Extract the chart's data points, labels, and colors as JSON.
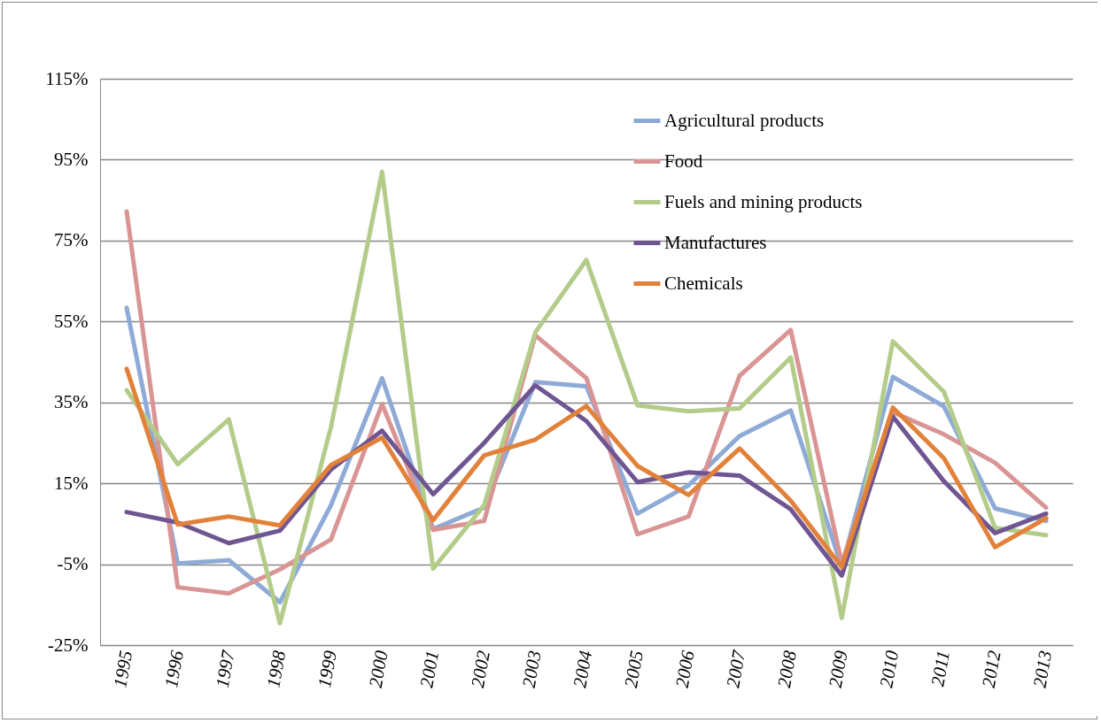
{
  "chart_data": {
    "type": "line",
    "categories": [
      "1995",
      "1996",
      "1997",
      "1998",
      "1999",
      "2000",
      "2001",
      "2002",
      "2003",
      "2004",
      "2005",
      "2006",
      "2007",
      "2008",
      "2009",
      "2010",
      "2011",
      "2012",
      "2013"
    ],
    "ylim": [
      -25,
      115
    ],
    "yticks": [
      {
        "value": -25,
        "label": "-25%"
      },
      {
        "value": -5,
        "label": "-5%"
      },
      {
        "value": 15,
        "label": "15%"
      },
      {
        "value": 35,
        "label": "35%"
      },
      {
        "value": 55,
        "label": "55%"
      },
      {
        "value": 75,
        "label": "75%"
      },
      {
        "value": 95,
        "label": "95%"
      },
      {
        "value": 115,
        "label": "115%"
      }
    ],
    "grid": "y",
    "legend": "top right",
    "line_style": "solid",
    "marker": "none",
    "series": [
      {
        "name": "Agricultural products",
        "color": "#8eaad6",
        "values": [
          58.4,
          -4.8,
          -4,
          -14.4,
          9.6,
          41,
          3.7,
          9,
          40,
          39,
          7.5,
          14.5,
          26.7,
          33,
          -5.7,
          41.3,
          34,
          8.8,
          5.7
        ]
      },
      {
        "name": "Food",
        "color": "#d99594",
        "values": [
          82.2,
          -10.7,
          -12.2,
          -6.3,
          1.1,
          34.6,
          3.5,
          5.7,
          51.6,
          41,
          2.4,
          6.8,
          41.6,
          52.9,
          -4.8,
          32.6,
          27.1,
          20.1,
          9
        ]
      },
      {
        "name": "Fuels and mining products",
        "color": "#b3cc8a",
        "values": [
          38,
          19.7,
          30.8,
          -19.6,
          28.9,
          92,
          -6.1,
          9.6,
          52.3,
          70.2,
          34.3,
          32.8,
          33.5,
          46.1,
          -18.3,
          50.1,
          37.6,
          4,
          2.2
        ]
      },
      {
        "name": "Manufactures",
        "color": "#6f5592",
        "values": [
          7.9,
          5.3,
          0.2,
          3.3,
          18.4,
          28,
          12.3,
          25,
          39.2,
          30.4,
          15.3,
          17.7,
          16.9,
          8.6,
          -7.8,
          31.5,
          15.5,
          2.7,
          7.5
        ]
      },
      {
        "name": "Chemicals",
        "color": "#e2823a",
        "values": [
          43.3,
          4.8,
          6.8,
          4.6,
          19.5,
          26.3,
          5.9,
          21.9,
          25.8,
          34.1,
          19.3,
          12.1,
          23.6,
          10.7,
          -5.7,
          33.7,
          21.2,
          -0.8,
          6.4
        ]
      }
    ]
  }
}
